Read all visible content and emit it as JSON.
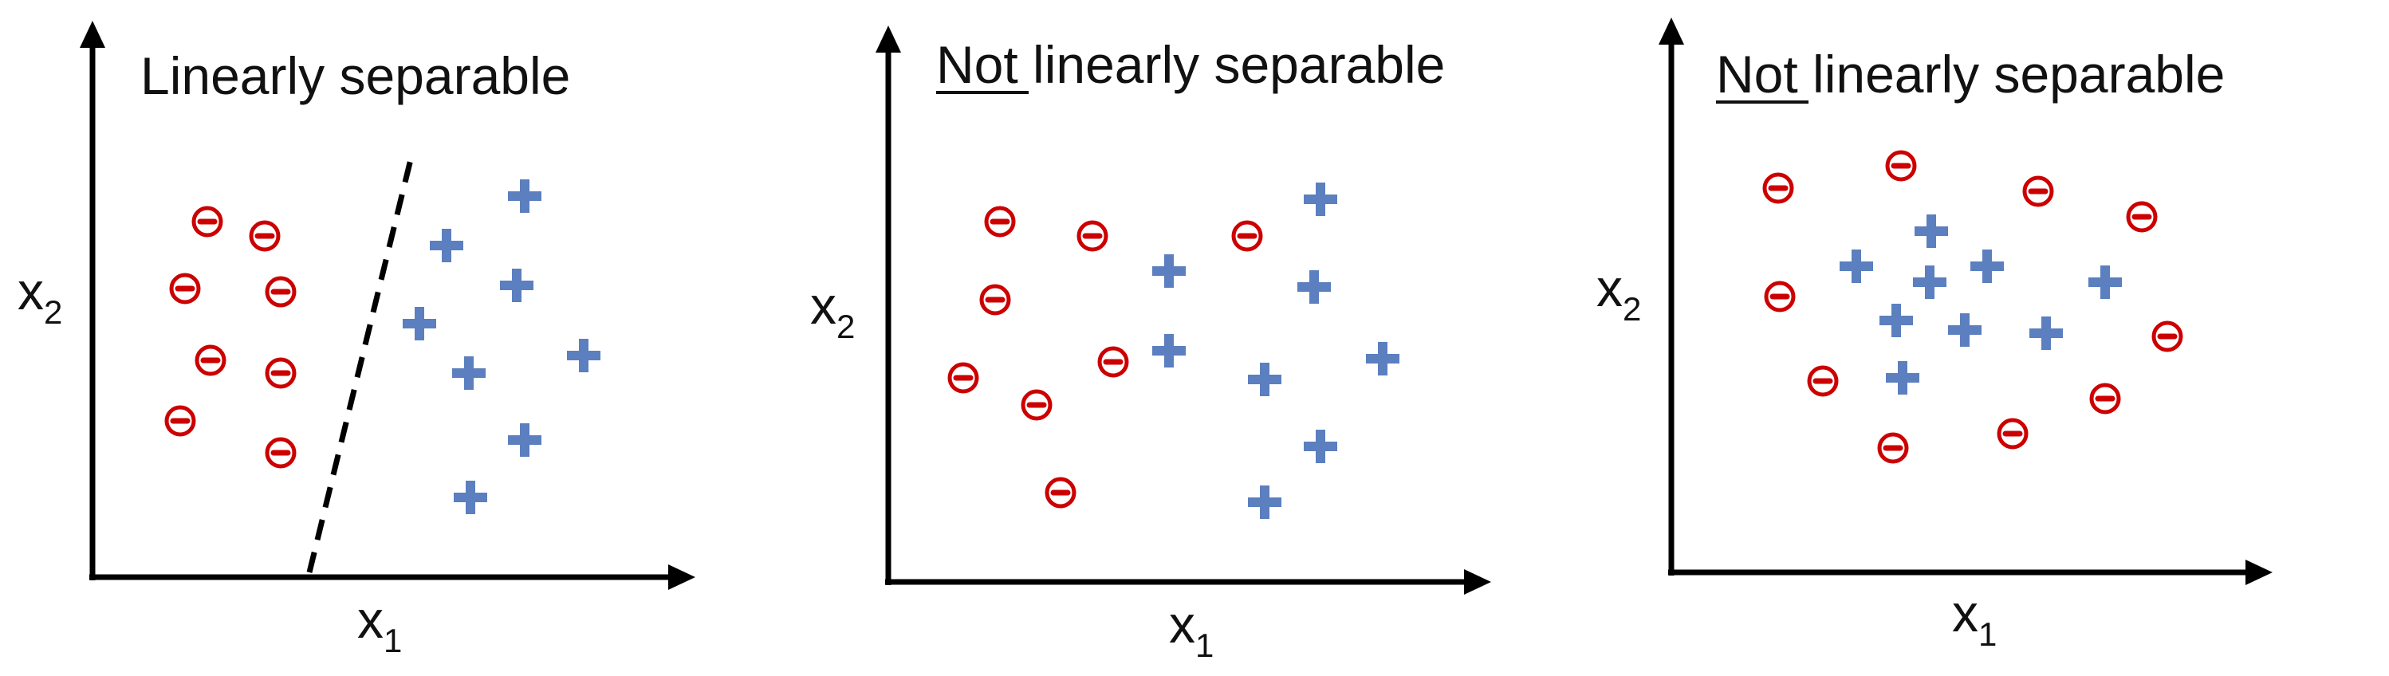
{
  "panels": [
    {
      "title_underlined": "",
      "title_rest": "Linearly separable",
      "x_label": "x",
      "x_subscript": "1",
      "y_label": "x",
      "y_subscript": "2",
      "decision_boundary": true
    },
    {
      "title_underlined": "Not",
      "title_rest": " linearly separable",
      "x_label": "x",
      "x_subscript": "1",
      "y_label": "x",
      "y_subscript": "2",
      "decision_boundary": false
    },
    {
      "title_underlined": "Not",
      "title_rest": " linearly separable",
      "x_label": "x",
      "x_subscript": "1",
      "y_label": "x",
      "y_subscript": "2",
      "decision_boundary": false
    }
  ],
  "legend_symbols": {
    "negative": "minus-circle-icon",
    "positive": "plus-icon"
  },
  "colors": {
    "negative": "#cc0000",
    "positive": "#5b7fbf",
    "axis": "#000000",
    "boundary": "#000000"
  }
}
